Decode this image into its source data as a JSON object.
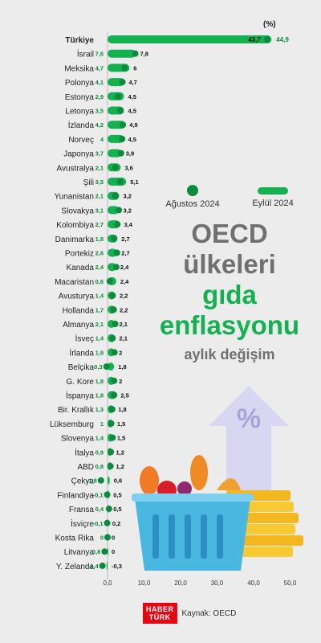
{
  "chart_data": {
    "type": "bar",
    "unit_label": "(%)",
    "series": [
      {
        "name": "Ağustos 2024",
        "style": "dot",
        "color": "#0d8a3d"
      },
      {
        "name": "Eylül 2024",
        "style": "bar",
        "color": "#13b14f"
      }
    ],
    "x_ticks": [
      "0,0",
      "10,0",
      "20,0",
      "30,0",
      "40,0",
      "50,0"
    ],
    "xlim": [
      0,
      50
    ],
    "rows": [
      {
        "country": "Türkiye",
        "aug": 43.7,
        "aug_label": "43,7",
        "sep": 44.9,
        "sep_label": "44,9"
      },
      {
        "country": "İsrail",
        "aug": 7.6,
        "aug_label": "7,6",
        "sep": 7.8,
        "sep_label": "7,8"
      },
      {
        "country": "Meksika",
        "aug": 4.7,
        "aug_label": "4,7",
        "sep": 6,
        "sep_label": "6"
      },
      {
        "country": "Polonya",
        "aug": 4.1,
        "aug_label": "4,1",
        "sep": 4.7,
        "sep_label": "4,7"
      },
      {
        "country": "Estonya",
        "aug": 2.9,
        "aug_label": "2,9",
        "sep": 4.5,
        "sep_label": "4,5"
      },
      {
        "country": "Letonya",
        "aug": 3.5,
        "aug_label": "3,5",
        "sep": 4.5,
        "sep_label": "4,5"
      },
      {
        "country": "İzlanda",
        "aug": 4.2,
        "aug_label": "4,2",
        "sep": 4.9,
        "sep_label": "4,9"
      },
      {
        "country": "Norveç",
        "aug": 4,
        "aug_label": "4",
        "sep": 4.5,
        "sep_label": "4,5"
      },
      {
        "country": "Japonya",
        "aug": 3.7,
        "aug_label": "3,7",
        "sep": 3.9,
        "sep_label": "3,9"
      },
      {
        "country": "Avustralya",
        "aug": 2.1,
        "aug_label": "2,1",
        "sep": 3.6,
        "sep_label": "3,6"
      },
      {
        "country": "Şili",
        "aug": 3.5,
        "aug_label": "3,5",
        "sep": 5.1,
        "sep_label": "5,1"
      },
      {
        "country": "Yunanistan",
        "aug": 2.1,
        "aug_label": "2,1",
        "sep": 3.2,
        "sep_label": "3,2"
      },
      {
        "country": "Slovakya",
        "aug": 3.1,
        "aug_label": "3,1",
        "sep": 3.2,
        "sep_label": "3,2"
      },
      {
        "country": "Kolombiya",
        "aug": 2.7,
        "aug_label": "2,7",
        "sep": 3.4,
        "sep_label": "3,4"
      },
      {
        "country": "Danimarka",
        "aug": 1.8,
        "aug_label": "1,8",
        "sep": 2.7,
        "sep_label": "2,7"
      },
      {
        "country": "Portekiz",
        "aug": 2.6,
        "aug_label": "2,6",
        "sep": 2.7,
        "sep_label": "2,7"
      },
      {
        "country": "Kanada",
        "aug": 2.4,
        "aug_label": "2,4",
        "sep": 2.4,
        "sep_label": "2,4"
      },
      {
        "country": "Macaristan",
        "aug": 0.6,
        "aug_label": "0,6",
        "sep": 2.4,
        "sep_label": "2,4"
      },
      {
        "country": "Avusturya",
        "aug": 1.4,
        "aug_label": "1,4",
        "sep": 2.2,
        "sep_label": "2,2"
      },
      {
        "country": "Hollanda",
        "aug": 1.7,
        "aug_label": "1,7",
        "sep": 2.2,
        "sep_label": "2,2"
      },
      {
        "country": "Almanya",
        "aug": 2.1,
        "aug_label": "2,1",
        "sep": 2.1,
        "sep_label": "2,1"
      },
      {
        "country": "İsveç",
        "aug": 1.4,
        "aug_label": "1,4",
        "sep": 2.1,
        "sep_label": "2,1"
      },
      {
        "country": "İrlanda",
        "aug": 1.9,
        "aug_label": "1,9",
        "sep": 2,
        "sep_label": "2"
      },
      {
        "country": "Belçika",
        "aug": -0.3,
        "aug_label": "-0,3",
        "sep": 1.8,
        "sep_label": "1,8"
      },
      {
        "country": "G. Kore",
        "aug": 1.8,
        "aug_label": "1,8",
        "sep": 2,
        "sep_label": "2"
      },
      {
        "country": "İspanya",
        "aug": 1.8,
        "aug_label": "1,8",
        "sep": 2.5,
        "sep_label": "2,5"
      },
      {
        "country": "Bir. Krallık",
        "aug": 1.3,
        "aug_label": "1,3",
        "sep": 1.8,
        "sep_label": "1,8"
      },
      {
        "country": "Lüksemburg",
        "aug": 1,
        "aug_label": "1",
        "sep": 1.5,
        "sep_label": "1,5"
      },
      {
        "country": "Slovenya",
        "aug": 1.4,
        "aug_label": "1,4",
        "sep": 1.5,
        "sep_label": "1,5"
      },
      {
        "country": "İtalya",
        "aug": 0.9,
        "aug_label": "0,9",
        "sep": 1.2,
        "sep_label": "1,2"
      },
      {
        "country": "ABD",
        "aug": 0.8,
        "aug_label": "0,8",
        "sep": 1.2,
        "sep_label": "1,2"
      },
      {
        "country": "Çekya",
        "aug": -1.8,
        "aug_label": "-1,8",
        "sep": 0.6,
        "sep_label": "0,6"
      },
      {
        "country": "Finlandiya",
        "aug": -0.1,
        "aug_label": "-0,1",
        "sep": 0.5,
        "sep_label": "0,5"
      },
      {
        "country": "Fransa",
        "aug": 0.4,
        "aug_label": "0,4",
        "sep": 0.5,
        "sep_label": "0,5"
      },
      {
        "country": "İsviçre",
        "aug": -0.1,
        "aug_label": "-0,1",
        "sep": 0.2,
        "sep_label": "0,2"
      },
      {
        "country": "Kosta Rika",
        "aug": 0,
        "aug_label": "0",
        "sep": 0,
        "sep_label": "0"
      },
      {
        "country": "Litvanya",
        "aug": -0.8,
        "aug_label": "-0,8",
        "sep": 0,
        "sep_label": "0"
      },
      {
        "country": "Y. Zelanda",
        "aug": -1.4,
        "aug_label": "-1,4",
        "sep": -0.3,
        "sep_label": "-0,3"
      }
    ]
  },
  "title": {
    "line1": "OECD",
    "line2": "ülkeleri",
    "line3": "gıda",
    "line4": "enflasyonu",
    "subtitle": "aylık değişim"
  },
  "legend": {
    "aug": "Ağustos 2024",
    "sep": "Eylül 2024"
  },
  "footer": {
    "logo_line1": "HABER",
    "logo_line2": "TÜRK",
    "source": "Kaynak: OECD"
  },
  "illustration": {
    "percent_symbol": "%"
  }
}
